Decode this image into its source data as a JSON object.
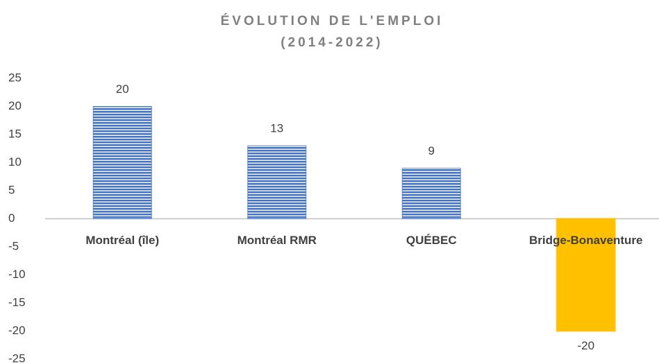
{
  "chart_data": {
    "type": "bar",
    "title": "ÉVOLUTION DE L'EMPLOI",
    "subtitle": "(2014-2022)",
    "categories": [
      "Montréal (île)",
      "Montréal RMR",
      "QUÉBEC",
      "Bridge-Bonaventure"
    ],
    "values": [
      20,
      13,
      9,
      -20
    ],
    "colors": [
      "#4472c4",
      "#4472c4",
      "#4472c4",
      "#ffc000"
    ],
    "bar_styles": [
      "striped",
      "striped",
      "striped",
      "solid"
    ],
    "ylim": [
      -25,
      25
    ],
    "yticks": [
      -25,
      -20,
      -15,
      -10,
      -5,
      0,
      5,
      10,
      15,
      20,
      25
    ],
    "grid": false
  }
}
